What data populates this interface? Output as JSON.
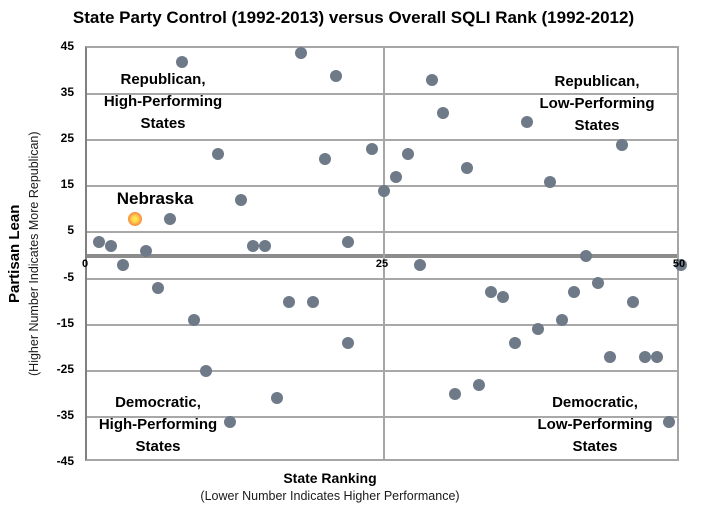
{
  "title": "State Party Control (1992-2013) versus Overall SQLI Rank (1992-2012)",
  "x_axis": {
    "title": "State Ranking",
    "subtitle": "(Lower Number Indicates Higher Performance)"
  },
  "y_axis": {
    "title": "Partisan Lean",
    "subtitle": "(Higher Number Indicates More Republican)"
  },
  "quadrants": {
    "top_left": [
      "Republican,",
      "High-Performing",
      "States"
    ],
    "top_right": [
      "Republican,",
      "Low-Performing",
      "States"
    ],
    "bottom_left": [
      "Democratic,",
      "High-Performing",
      "States"
    ],
    "bottom_right": [
      "Democratic,",
      "Low-Performing",
      "States"
    ]
  },
  "annotation": {
    "label": "Nebraska",
    "point": [
      4,
      8
    ]
  },
  "colors": {
    "dot": "#6e7a88",
    "nebraska_outer": "#f79646",
    "nebraska_inner": "#ffee55",
    "gridline": "#a8a8a8",
    "zero_line": "#8c8c8c",
    "divider": "#a6a6a6"
  },
  "chart_data": {
    "type": "scatter",
    "title": "State Party Control (1992-2013) versus Overall SQLI Rank (1992-2012)",
    "xlabel": "State Ranking (Lower Number Indicates Higher Performance)",
    "ylabel": "Partisan Lean (Higher Number Indicates More Republican)",
    "xlim": [
      0,
      50
    ],
    "ylim": [
      -45,
      45
    ],
    "x_ticks": [
      0,
      25,
      50
    ],
    "y_ticks": [
      45,
      35,
      25,
      15,
      5,
      -5,
      -15,
      -25,
      -35,
      -45
    ],
    "grid": true,
    "legend": "none",
    "series": [
      {
        "name": "States",
        "points": [
          [
            8,
            42
          ],
          [
            18,
            44
          ],
          [
            21,
            39
          ],
          [
            11,
            22
          ],
          [
            20,
            21
          ],
          [
            24,
            23
          ],
          [
            13,
            12
          ],
          [
            7,
            8
          ],
          [
            1,
            3
          ],
          [
            2,
            2
          ],
          [
            5,
            1
          ],
          [
            14,
            2
          ],
          [
            15,
            2
          ],
          [
            22,
            3
          ],
          [
            3,
            -2
          ],
          [
            6,
            -7
          ],
          [
            17,
            -10
          ],
          [
            19,
            -10
          ],
          [
            9,
            -14
          ],
          [
            22,
            -19
          ],
          [
            10,
            -25
          ],
          [
            16,
            -31
          ],
          [
            12,
            -36
          ],
          [
            29,
            38
          ],
          [
            30,
            31
          ],
          [
            37,
            29
          ],
          [
            27,
            22
          ],
          [
            32,
            19
          ],
          [
            26,
            17
          ],
          [
            25,
            14
          ],
          [
            45,
            24
          ],
          [
            39,
            16
          ],
          [
            42,
            0
          ],
          [
            50,
            -2
          ],
          [
            28,
            -2
          ],
          [
            34,
            -8
          ],
          [
            35,
            -9
          ],
          [
            43,
            -6
          ],
          [
            41,
            -8
          ],
          [
            46,
            -10
          ],
          [
            40,
            -14
          ],
          [
            38,
            -16
          ],
          [
            36,
            -19
          ],
          [
            44,
            -22
          ],
          [
            47,
            -22
          ],
          [
            48,
            -22
          ],
          [
            33,
            -28
          ],
          [
            31,
            -30
          ],
          [
            49,
            -36
          ]
        ]
      },
      {
        "name": "Nebraska",
        "points": [
          [
            4,
            8
          ]
        ]
      }
    ]
  }
}
